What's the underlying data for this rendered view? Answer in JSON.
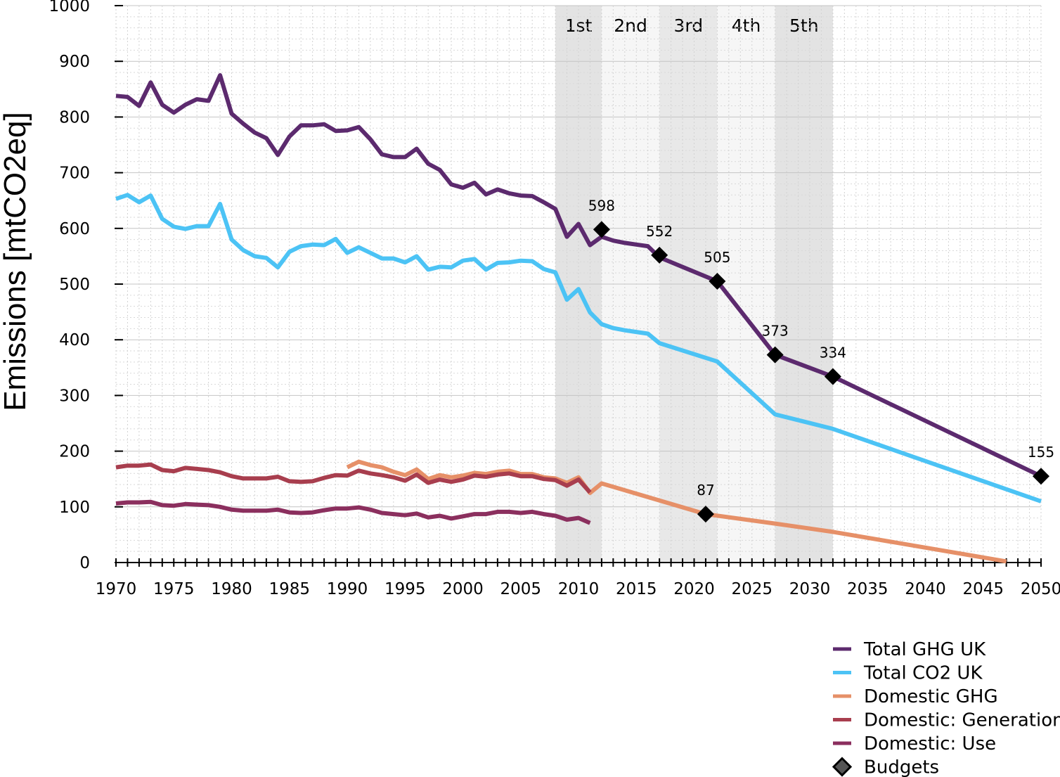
{
  "chart_data": {
    "type": "line",
    "title": "",
    "xlabel": "",
    "ylabel": "Emissions [mtCO2eq]",
    "xlim": [
      1970,
      2050
    ],
    "ylim": [
      0,
      1000
    ],
    "x_ticks": [
      "1970",
      "1975",
      "1980",
      "1985",
      "1990",
      "1995",
      "2000",
      "2005",
      "2010",
      "2015",
      "2020",
      "2025",
      "2030",
      "2035",
      "2040",
      "2045",
      "2050"
    ],
    "y_ticks": [
      "0",
      "100",
      "200",
      "300",
      "400",
      "500",
      "600",
      "700",
      "800",
      "900",
      "1000"
    ],
    "grid": true,
    "legend_position": "bottom-right",
    "budget_periods": [
      {
        "label": "1st",
        "start": 2008,
        "end": 2012,
        "shade": "#e3e3e3"
      },
      {
        "label": "2nd",
        "start": 2012,
        "end": 2017,
        "shade": "#f6f6f6"
      },
      {
        "label": "3rd",
        "start": 2017,
        "end": 2022,
        "shade": "#e8e8e8"
      },
      {
        "label": "4th",
        "start": 2022,
        "end": 2027,
        "shade": "#f6f6f6"
      },
      {
        "label": "5th",
        "start": 2027,
        "end": 2032,
        "shade": "#e3e3e3"
      }
    ],
    "series": [
      {
        "name": "Total GHG UK",
        "color": "#5c2a6e",
        "points": [
          [
            1970,
            838
          ],
          [
            1971,
            836
          ],
          [
            1972,
            820
          ],
          [
            1973,
            862
          ],
          [
            1974,
            822
          ],
          [
            1975,
            808
          ],
          [
            1976,
            822
          ],
          [
            1977,
            832
          ],
          [
            1978,
            829
          ],
          [
            1979,
            875
          ],
          [
            1980,
            806
          ],
          [
            1981,
            788
          ],
          [
            1982,
            772
          ],
          [
            1983,
            762
          ],
          [
            1984,
            732
          ],
          [
            1985,
            765
          ],
          [
            1986,
            785
          ],
          [
            1987,
            785
          ],
          [
            1988,
            787
          ],
          [
            1989,
            775
          ],
          [
            1990,
            776
          ],
          [
            1991,
            782
          ],
          [
            1992,
            760
          ],
          [
            1993,
            733
          ],
          [
            1994,
            728
          ],
          [
            1995,
            728
          ],
          [
            1996,
            743
          ],
          [
            1997,
            716
          ],
          [
            1998,
            705
          ],
          [
            1999,
            679
          ],
          [
            2000,
            673
          ],
          [
            2001,
            682
          ],
          [
            2002,
            661
          ],
          [
            2003,
            670
          ],
          [
            2004,
            663
          ],
          [
            2005,
            659
          ],
          [
            2006,
            658
          ],
          [
            2007,
            647
          ],
          [
            2008,
            635
          ],
          [
            2009,
            585
          ],
          [
            2010,
            608
          ],
          [
            2011,
            570
          ],
          [
            2012,
            585
          ],
          [
            2013,
            578
          ],
          [
            2014,
            574
          ],
          [
            2015,
            571
          ],
          [
            2016,
            568
          ],
          [
            2017,
            548
          ],
          [
            2022,
            505
          ],
          [
            2027,
            373
          ],
          [
            2032,
            334
          ],
          [
            2050,
            155
          ]
        ]
      },
      {
        "name": "Total CO2 UK",
        "color": "#4cc3f5",
        "points": [
          [
            1970,
            653
          ],
          [
            1971,
            660
          ],
          [
            1972,
            647
          ],
          [
            1973,
            659
          ],
          [
            1974,
            617
          ],
          [
            1975,
            603
          ],
          [
            1976,
            599
          ],
          [
            1977,
            604
          ],
          [
            1978,
            604
          ],
          [
            1979,
            644
          ],
          [
            1980,
            580
          ],
          [
            1981,
            561
          ],
          [
            1982,
            550
          ],
          [
            1983,
            547
          ],
          [
            1984,
            530
          ],
          [
            1985,
            558
          ],
          [
            1986,
            568
          ],
          [
            1987,
            571
          ],
          [
            1988,
            570
          ],
          [
            1989,
            581
          ],
          [
            1990,
            556
          ],
          [
            1991,
            566
          ],
          [
            1992,
            556
          ],
          [
            1993,
            546
          ],
          [
            1994,
            546
          ],
          [
            1995,
            539
          ],
          [
            1996,
            550
          ],
          [
            1997,
            526
          ],
          [
            1998,
            531
          ],
          [
            1999,
            530
          ],
          [
            2000,
            542
          ],
          [
            2001,
            545
          ],
          [
            2002,
            526
          ],
          [
            2003,
            538
          ],
          [
            2004,
            539
          ],
          [
            2005,
            542
          ],
          [
            2006,
            541
          ],
          [
            2007,
            527
          ],
          [
            2008,
            521
          ],
          [
            2009,
            472
          ],
          [
            2010,
            491
          ],
          [
            2011,
            449
          ],
          [
            2012,
            428
          ],
          [
            2013,
            421
          ],
          [
            2014,
            417
          ],
          [
            2015,
            414
          ],
          [
            2016,
            411
          ],
          [
            2017,
            394
          ],
          [
            2022,
            361
          ],
          [
            2027,
            266
          ],
          [
            2032,
            240
          ],
          [
            2050,
            110
          ]
        ]
      },
      {
        "name": "Domestic GHG",
        "color": "#e69068",
        "points": [
          [
            1990,
            171
          ],
          [
            1991,
            181
          ],
          [
            1992,
            175
          ],
          [
            1993,
            171
          ],
          [
            1994,
            163
          ],
          [
            1995,
            157
          ],
          [
            1996,
            167
          ],
          [
            1997,
            150
          ],
          [
            1998,
            157
          ],
          [
            1999,
            153
          ],
          [
            2000,
            156
          ],
          [
            2001,
            161
          ],
          [
            2002,
            159
          ],
          [
            2003,
            163
          ],
          [
            2004,
            165
          ],
          [
            2005,
            159
          ],
          [
            2006,
            159
          ],
          [
            2007,
            153
          ],
          [
            2008,
            151
          ],
          [
            2009,
            143
          ],
          [
            2010,
            153
          ],
          [
            2011,
            125
          ],
          [
            2012,
            142
          ],
          [
            2021,
            87
          ],
          [
            2027,
            70
          ],
          [
            2032,
            55
          ],
          [
            2047,
            2
          ]
        ]
      },
      {
        "name": "Domestic: Generation",
        "color": "#a83e4e",
        "points": [
          [
            1970,
            171
          ],
          [
            1971,
            174
          ],
          [
            1972,
            174
          ],
          [
            1973,
            176
          ],
          [
            1974,
            166
          ],
          [
            1975,
            164
          ],
          [
            1976,
            170
          ],
          [
            1977,
            168
          ],
          [
            1978,
            166
          ],
          [
            1979,
            162
          ],
          [
            1980,
            155
          ],
          [
            1981,
            151
          ],
          [
            1982,
            151
          ],
          [
            1983,
            151
          ],
          [
            1984,
            154
          ],
          [
            1985,
            146
          ],
          [
            1986,
            145
          ],
          [
            1987,
            146
          ],
          [
            1988,
            152
          ],
          [
            1989,
            157
          ],
          [
            1990,
            156
          ],
          [
            1991,
            165
          ],
          [
            1992,
            160
          ],
          [
            1993,
            157
          ],
          [
            1994,
            153
          ],
          [
            1995,
            147
          ],
          [
            1996,
            158
          ],
          [
            1997,
            143
          ],
          [
            1998,
            149
          ],
          [
            1999,
            145
          ],
          [
            2000,
            149
          ],
          [
            2001,
            156
          ],
          [
            2002,
            154
          ],
          [
            2003,
            158
          ],
          [
            2004,
            160
          ],
          [
            2005,
            155
          ],
          [
            2006,
            155
          ],
          [
            2007,
            150
          ],
          [
            2008,
            148
          ],
          [
            2009,
            138
          ],
          [
            2010,
            149
          ],
          [
            2011,
            126
          ]
        ]
      },
      {
        "name": "Domestic: Use",
        "color": "#8b2f5e",
        "points": [
          [
            1970,
            106
          ],
          [
            1971,
            108
          ],
          [
            1972,
            108
          ],
          [
            1973,
            109
          ],
          [
            1974,
            103
          ],
          [
            1975,
            102
          ],
          [
            1976,
            105
          ],
          [
            1977,
            104
          ],
          [
            1978,
            103
          ],
          [
            1979,
            100
          ],
          [
            1980,
            95
          ],
          [
            1981,
            93
          ],
          [
            1982,
            93
          ],
          [
            1983,
            93
          ],
          [
            1984,
            95
          ],
          [
            1985,
            90
          ],
          [
            1986,
            89
          ],
          [
            1987,
            90
          ],
          [
            1988,
            94
          ],
          [
            1989,
            97
          ],
          [
            1990,
            97
          ],
          [
            1991,
            99
          ],
          [
            1992,
            95
          ],
          [
            1993,
            89
          ],
          [
            1994,
            87
          ],
          [
            1995,
            85
          ],
          [
            1996,
            88
          ],
          [
            1997,
            81
          ],
          [
            1998,
            84
          ],
          [
            1999,
            79
          ],
          [
            2000,
            83
          ],
          [
            2001,
            87
          ],
          [
            2002,
            87
          ],
          [
            2003,
            91
          ],
          [
            2004,
            91
          ],
          [
            2005,
            89
          ],
          [
            2006,
            91
          ],
          [
            2007,
            87
          ],
          [
            2008,
            84
          ],
          [
            2009,
            77
          ],
          [
            2010,
            80
          ],
          [
            2011,
            71
          ]
        ]
      }
    ],
    "budgets": {
      "name": "Budgets",
      "color": "#000000",
      "points": [
        {
          "x": 2012,
          "y": 598,
          "label": "598"
        },
        {
          "x": 2017,
          "y": 552,
          "label": "552"
        },
        {
          "x": 2021,
          "y": 87,
          "label": "87"
        },
        {
          "x": 2022,
          "y": 505,
          "label": "505"
        },
        {
          "x": 2027,
          "y": 373,
          "label": "373"
        },
        {
          "x": 2032,
          "y": 334,
          "label": "334"
        },
        {
          "x": 2050,
          "y": 155,
          "label": "155"
        }
      ]
    }
  }
}
